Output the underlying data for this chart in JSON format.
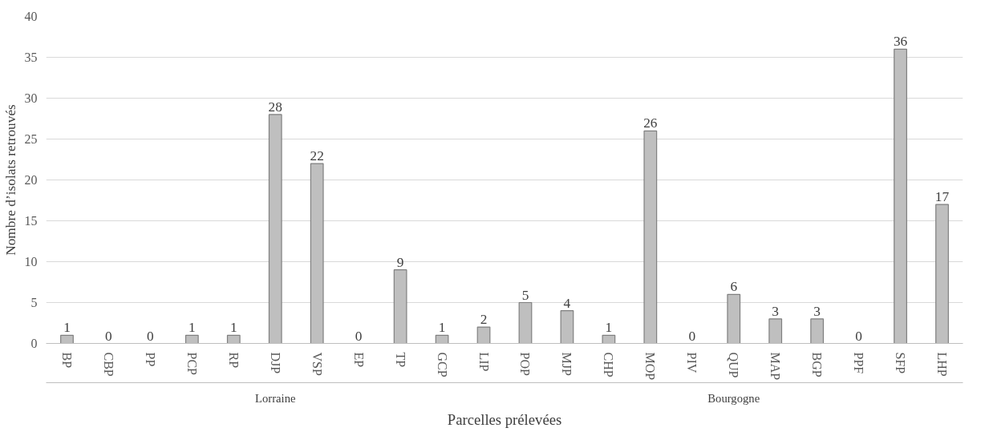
{
  "chart_data": {
    "type": "bar",
    "xlabel": "Parcelles prélevées",
    "ylabel": "Nombre d’isolats retrouvés",
    "categories": [
      "BP",
      "CBP",
      "PP",
      "PCP",
      "RP",
      "DJP",
      "VSP",
      "EP",
      "TP",
      "GCP",
      "LIP",
      "POP",
      "MJP",
      "CHP",
      "MOP",
      "PIV",
      "QUP",
      "MAP",
      "BGP",
      "PPF",
      "SFP",
      "LHP"
    ],
    "values": [
      1,
      0,
      0,
      1,
      1,
      28,
      22,
      0,
      9,
      1,
      2,
      5,
      4,
      1,
      26,
      0,
      6,
      3,
      3,
      0,
      36,
      17
    ],
    "color": "#bfbfbf",
    "ylim": [
      0,
      40
    ],
    "yticks": [
      0,
      5,
      10,
      15,
      20,
      25,
      30,
      35,
      40
    ],
    "grid": "y",
    "data_labels": true,
    "annotations": [
      "Lorraine",
      "Bourgogne"
    ]
  }
}
